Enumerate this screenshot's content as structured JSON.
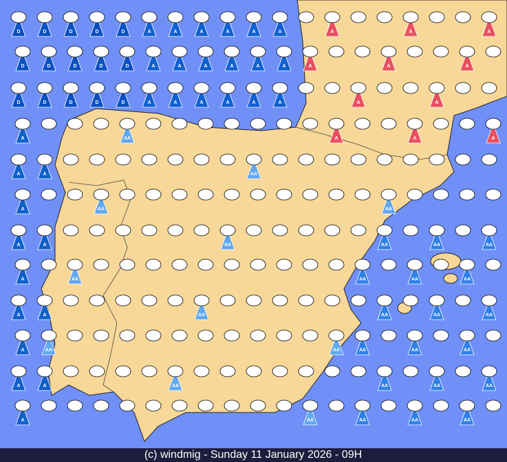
{
  "footer": "(c) windmig - Sunday 11 January 2026 - 09H",
  "symbols": {
    "a": "A",
    "aa": "AA",
    "d": "D"
  }
}
